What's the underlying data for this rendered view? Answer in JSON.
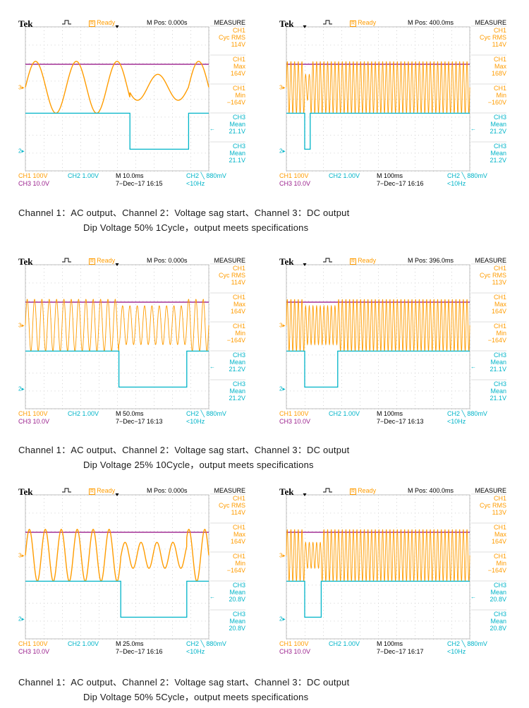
{
  "colors": {
    "ch1": "#ff9c00",
    "ch2": "#00b4c8",
    "ch3": "#9a1f8c",
    "grid": "#b8b8b8"
  },
  "chart_data": [
    {
      "type": "line",
      "title": "",
      "brand": "Tek",
      "status": "Ready",
      "mpos": "M Pos: 0.000s",
      "measure_title": "MEASURE",
      "measurements": [
        {
          "ch": "CH1",
          "label": "Cyc RMS",
          "value": "114V"
        },
        {
          "ch": "CH1",
          "label": "Max",
          "value": "164V"
        },
        {
          "ch": "CH1",
          "label": "Min",
          "value": "−164V"
        },
        {
          "ch": "CH3",
          "label": "Mean",
          "value": "21.1V"
        },
        {
          "ch": "CH3",
          "label": "Mean",
          "value": "21.1V"
        }
      ],
      "ch1_scale": "CH1  100V",
      "ch2_scale": "CH2  1.00V",
      "ch3_scale": "CH3  10.0V",
      "timebase": "M 10.0ms",
      "date": "7−Dec−17 16:15",
      "trigger": "CH2 ╲ 880mV",
      "freq": "<10Hz",
      "signal": {
        "ch1_cycles": 4.5,
        "dip_start": 0.57,
        "dip_end": 0.89,
        "dip_ratio": 0.5,
        "ch3_level": 0.26,
        "ch2_high": 0.6,
        "ch2_low": 0.85
      }
    },
    {
      "type": "line",
      "title": "",
      "brand": "Tek",
      "status": "Ready",
      "mpos": "M Pos: 400.0ms",
      "measure_title": "MEASURE",
      "measurements": [
        {
          "ch": "CH1",
          "label": "Cyc RMS",
          "value": "114V"
        },
        {
          "ch": "CH1",
          "label": "Max",
          "value": "168V"
        },
        {
          "ch": "CH1",
          "label": "Min",
          "value": "−160V"
        },
        {
          "ch": "CH3",
          "label": "Mean",
          "value": "21.2V"
        },
        {
          "ch": "CH3",
          "label": "Mean",
          "value": "21.2V"
        }
      ],
      "ch1_scale": "CH1  100V",
      "ch2_scale": "CH2  1.00V",
      "ch3_scale": "CH3  10.0V",
      "timebase": "M 100ms",
      "date": "7−Dec−17 16:16",
      "trigger": "CH2 ╲ 880mV",
      "freq": "<10Hz",
      "signal": {
        "ch1_cycles": 50,
        "dip_start": 0.1,
        "dip_end": 0.13,
        "dip_ratio": 0.5,
        "ch3_level": 0.26,
        "ch2_high": 0.6,
        "ch2_low": 0.85
      }
    },
    {
      "type": "line",
      "title": "",
      "brand": "Tek",
      "status": "Ready",
      "mpos": "M Pos: 0.000s",
      "measure_title": "MEASURE",
      "measurements": [
        {
          "ch": "CH1",
          "label": "Cyc RMS",
          "value": "114V"
        },
        {
          "ch": "CH1",
          "label": "Max",
          "value": "164V"
        },
        {
          "ch": "CH1",
          "label": "Min",
          "value": "−164V"
        },
        {
          "ch": "CH3",
          "label": "Mean",
          "value": "21.2V"
        },
        {
          "ch": "CH3",
          "label": "Mean",
          "value": "21.2V"
        }
      ],
      "ch1_scale": "CH1  100V",
      "ch2_scale": "CH2  1.00V",
      "ch3_scale": "CH3  10.0V",
      "timebase": "M 50.0ms",
      "date": "7−Dec−17 16:13",
      "trigger": "CH2 ╲ 880mV",
      "freq": "<10Hz",
      "signal": {
        "ch1_cycles": 25,
        "dip_start": 0.51,
        "dip_end": 0.88,
        "dip_ratio": 0.75,
        "ch3_level": 0.26,
        "ch2_high": 0.6,
        "ch2_low": 0.85
      }
    },
    {
      "type": "line",
      "title": "",
      "brand": "Tek",
      "status": "Ready",
      "mpos": "M Pos: 396.0ms",
      "measure_title": "MEASURE",
      "measurements": [
        {
          "ch": "CH1",
          "label": "Cyc RMS",
          "value": "113V"
        },
        {
          "ch": "CH1",
          "label": "Max",
          "value": "164V"
        },
        {
          "ch": "CH1",
          "label": "Min",
          "value": "−164V"
        },
        {
          "ch": "CH3",
          "label": "Mean",
          "value": "21.1V"
        },
        {
          "ch": "CH3",
          "label": "Mean",
          "value": "21.1V"
        }
      ],
      "ch1_scale": "CH1  100V",
      "ch2_scale": "CH2  1.00V",
      "ch3_scale": "CH3  10.0V",
      "timebase": "M 100ms",
      "date": "7−Dec−17 16:13",
      "trigger": "CH2 ╲ 880mV",
      "freq": "<10Hz",
      "signal": {
        "ch1_cycles": 50,
        "dip_start": 0.1,
        "dip_end": 0.28,
        "dip_ratio": 0.75,
        "ch3_level": 0.26,
        "ch2_high": 0.6,
        "ch2_low": 0.85
      }
    },
    {
      "type": "line",
      "title": "",
      "brand": "Tek",
      "status": "Ready",
      "mpos": "M Pos: 0.000s",
      "measure_title": "MEASURE",
      "measurements": [
        {
          "ch": "CH1",
          "label": "Cyc RMS",
          "value": "114V"
        },
        {
          "ch": "CH1",
          "label": "Max",
          "value": "164V"
        },
        {
          "ch": "CH1",
          "label": "Min",
          "value": "−164V"
        },
        {
          "ch": "CH3",
          "label": "Mean",
          "value": "20.8V"
        },
        {
          "ch": "CH3",
          "label": "Mean",
          "value": "20.8V"
        }
      ],
      "ch1_scale": "CH1  100V",
      "ch2_scale": "CH2  1.00V",
      "ch3_scale": "CH3  10.0V",
      "timebase": "M 25.0ms",
      "date": "7−Dec−17 16:16",
      "trigger": "CH2 ╲ 880mV",
      "freq": "<10Hz",
      "signal": {
        "ch1_cycles": 11.5,
        "dip_start": 0.52,
        "dip_end": 0.88,
        "dip_ratio": 0.5,
        "ch3_level": 0.26,
        "ch2_high": 0.6,
        "ch2_low": 0.85
      }
    },
    {
      "type": "line",
      "title": "",
      "brand": "Tek",
      "status": "Ready",
      "mpos": "M Pos: 400.0ms",
      "measure_title": "MEASURE",
      "measurements": [
        {
          "ch": "CH1",
          "label": "Cyc RMS",
          "value": "113V"
        },
        {
          "ch": "CH1",
          "label": "Max",
          "value": "164V"
        },
        {
          "ch": "CH1",
          "label": "Min",
          "value": "−164V"
        },
        {
          "ch": "CH3",
          "label": "Mean",
          "value": "20.8V"
        },
        {
          "ch": "CH3",
          "label": "Mean",
          "value": "20.8V"
        }
      ],
      "ch1_scale": "CH1  100V",
      "ch2_scale": "CH2  1.00V",
      "ch3_scale": "CH3  10.0V",
      "timebase": "M 100ms",
      "date": "7−Dec−17 16:17",
      "trigger": "CH2 ╲ 880mV",
      "freq": "<10Hz",
      "signal": {
        "ch1_cycles": 50,
        "dip_start": 0.1,
        "dip_end": 0.19,
        "dip_ratio": 0.5,
        "ch3_level": 0.26,
        "ch2_high": 0.6,
        "ch2_low": 0.85
      }
    }
  ],
  "captions": [
    {
      "line1": "Channel 1：AC output、Channel 2：Voltage sag start、Channel 3：DC output",
      "line2": "Dip Voltage 50% 1Cycle，output meets specifications"
    },
    {
      "line1": "Channel 1：AC output、Channel 2：Voltage sag start、Channel 3：DC output",
      "line2": "Dip Voltage 25% 10Cycle，output meets specifications"
    },
    {
      "line1": "Channel 1：AC output、Channel 2：Voltage sag start、Channel 3：DC output",
      "line2": "Dip Voltage 50% 5Cycle，output meets specifications"
    }
  ]
}
